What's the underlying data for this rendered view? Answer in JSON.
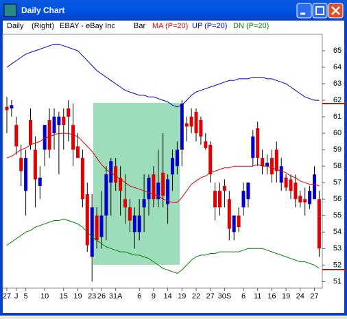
{
  "window_title": "Daily Chart",
  "chart_data": {
    "type": "candlestick",
    "period": "Daily",
    "axis_side": "(Right)",
    "symbol": "EBAY - eBay Inc",
    "categories": [
      "27",
      null,
      "J",
      null,
      "5",
      null,
      null,
      null,
      "10",
      null,
      null,
      null,
      "15",
      null,
      null,
      "19",
      null,
      null,
      "23",
      null,
      "26",
      null,
      null,
      "31A",
      null,
      null,
      null,
      null,
      "6",
      null,
      null,
      "9",
      null,
      null,
      "14",
      null,
      null,
      "19",
      null,
      null,
      "22",
      null,
      null,
      "27",
      null,
      null,
      "30S",
      null,
      null,
      null,
      "6",
      null,
      null,
      "11",
      null,
      null,
      "16",
      null,
      null,
      "19",
      null,
      null,
      "24",
      null,
      null,
      "27",
      null
    ],
    "candles": {
      "name": "Bar",
      "up_color": "#0000c8",
      "down_color": "#e00000",
      "wick_color": "#000000",
      "open": [
        61.6,
        61.5,
        60.5,
        58.5,
        56.5,
        60.8,
        59.0,
        56.8,
        59.0,
        60.8,
        60.0,
        60.5,
        61.0,
        61.5,
        60.5,
        59.2,
        58.5,
        56.3,
        52.5,
        55.0,
        53.7,
        55.0,
        57.0,
        58.0,
        57.3,
        56.0,
        55.5,
        54.0,
        54.0,
        55.5,
        56.0,
        57.5,
        56.0,
        57.6,
        55.7,
        57.5,
        58.0,
        59.0,
        60.6,
        61.0,
        61.3,
        60.8,
        59.5,
        59.3,
        56.5,
        56.5,
        56.8,
        56.0,
        54.0,
        55.0,
        55.5,
        56.0,
        58.5,
        60.3,
        58.5,
        58.0,
        58.5,
        59.0,
        57.0,
        57.3,
        57.2,
        57.0,
        56.2,
        56.0,
        55.7,
        56.0,
        56.0
      ],
      "high": [
        62.2,
        62.0,
        61.0,
        59.3,
        59.0,
        61.5,
        59.8,
        58.0,
        60.5,
        61.5,
        61.5,
        61.3,
        61.5,
        62.0,
        61.8,
        60.0,
        59.0,
        57.0,
        56.3,
        55.5,
        56.5,
        58.0,
        58.5,
        58.5,
        58.0,
        57.5,
        56.0,
        55.5,
        56.0,
        57.5,
        57.5,
        58.0,
        59.0,
        60.0,
        57.5,
        59.0,
        59.5,
        62.0,
        61.0,
        61.5,
        61.5,
        61.0,
        60.0,
        59.5,
        57.0,
        57.0,
        57.2,
        56.5,
        55.0,
        55.5,
        57.0,
        57.0,
        60.2,
        60.7,
        59.0,
        58.7,
        59.0,
        59.5,
        58.5,
        57.5,
        57.5,
        57.5,
        56.5,
        56.7,
        56.8,
        58.0,
        56.5
      ],
      "low": [
        60.0,
        61.0,
        58.7,
        56.8,
        55.0,
        59.0,
        55.5,
        56.0,
        58.0,
        58.5,
        59.0,
        57.5,
        59.0,
        59.5,
        58.0,
        58.5,
        55.5,
        52.8,
        51.0,
        53.0,
        53.0,
        53.5,
        55.0,
        56.5,
        55.0,
        54.5,
        54.0,
        53.0,
        53.5,
        54.0,
        55.0,
        55.5,
        55.5,
        55.5,
        54.5,
        56.5,
        57.5,
        58.0,
        59.5,
        60.0,
        59.5,
        59.3,
        59.0,
        57.0,
        54.7,
        55.0,
        55.5,
        53.5,
        53.5,
        54.0,
        55.0,
        55.5,
        58.0,
        58.0,
        57.5,
        57.5,
        57.0,
        57.0,
        56.5,
        56.5,
        56.0,
        55.5,
        55.5,
        55.0,
        55.4,
        56.0,
        52.5
      ],
      "close": [
        61.4,
        61.7,
        59.2,
        57.7,
        58.5,
        59.3,
        57.2,
        57.3,
        60.5,
        59.0,
        61.0,
        61.0,
        60.5,
        61.0,
        59.0,
        58.5,
        56.0,
        53.2,
        55.5,
        53.5,
        55.0,
        57.5,
        58.3,
        57.0,
        56.5,
        55.5,
        54.7,
        55.0,
        55.0,
        56.0,
        57.3,
        56.0,
        57.0,
        56.2,
        57.2,
        58.5,
        59.0,
        61.8,
        60.4,
        60.4,
        60.0,
        59.8,
        59.1,
        57.5,
        55.5,
        55.5,
        56.5,
        54.2,
        55.0,
        54.3,
        56.5,
        57.0,
        59.8,
        58.5,
        58.0,
        58.2,
        57.5,
        57.7,
        58.0,
        56.7,
        56.5,
        56.0,
        55.8,
        55.8,
        56.5,
        57.5,
        53.0
      ]
    },
    "series": [
      {
        "name": "MA (P=20)",
        "color": "#e00000",
        "values": [
          58.5,
          58.6,
          58.8,
          59.0,
          59.1,
          59.3,
          59.4,
          59.5,
          59.7,
          59.8,
          59.9,
          60.0,
          60.0,
          60.0,
          59.9,
          59.8,
          59.5,
          59.2,
          58.9,
          58.5,
          58.1,
          57.8,
          57.6,
          57.4,
          57.2,
          57.0,
          56.8,
          56.7,
          56.6,
          56.5,
          56.4,
          56.3,
          56.2,
          56.0,
          55.9,
          55.8,
          55.8,
          56.1,
          56.5,
          56.9,
          57.1,
          57.3,
          57.4,
          57.6,
          57.7,
          57.8,
          57.9,
          57.9,
          58.0,
          58.0,
          58.0,
          58.0,
          58.0,
          58.1,
          58.0,
          58.0,
          57.9,
          57.8,
          57.7,
          57.6,
          57.4,
          57.3,
          57.1,
          57.0,
          56.9,
          56.9,
          56.8
        ]
      },
      {
        "name": "UP (P=20)",
        "color": "#0000c8",
        "values": [
          64.0,
          64.2,
          64.4,
          64.6,
          64.8,
          64.9,
          65.0,
          65.1,
          65.2,
          65.3,
          65.4,
          65.4,
          65.3,
          65.2,
          65.1,
          65.0,
          64.7,
          64.4,
          64.1,
          63.8,
          63.6,
          63.4,
          63.2,
          63.0,
          62.8,
          62.6,
          62.5,
          62.4,
          62.3,
          62.3,
          62.2,
          62.2,
          62.1,
          62.0,
          61.9,
          61.7,
          61.6,
          61.7,
          62.0,
          62.3,
          62.5,
          62.6,
          62.7,
          62.8,
          62.9,
          63.0,
          63.1,
          63.2,
          63.2,
          63.3,
          63.3,
          63.3,
          63.4,
          63.4,
          63.4,
          63.3,
          63.3,
          63.2,
          63.1,
          63.0,
          62.8,
          62.6,
          62.4,
          62.2,
          62.1,
          62.0,
          62.0
        ]
      },
      {
        "name": "DN (P=20)",
        "color": "#008000",
        "values": [
          53.2,
          53.4,
          53.6,
          53.8,
          54.0,
          54.1,
          54.3,
          54.4,
          54.5,
          54.6,
          54.7,
          54.7,
          54.8,
          54.7,
          54.6,
          54.5,
          54.3,
          54.0,
          53.7,
          53.5,
          53.3,
          53.1,
          53.0,
          52.9,
          52.8,
          52.8,
          52.7,
          52.6,
          52.6,
          52.5,
          52.4,
          52.2,
          52.0,
          51.8,
          51.7,
          51.6,
          51.5,
          51.7,
          52.0,
          52.3,
          52.5,
          52.6,
          52.6,
          52.7,
          52.7,
          52.8,
          52.8,
          52.8,
          52.8,
          52.8,
          52.9,
          53.0,
          53.0,
          53.0,
          53.0,
          52.9,
          52.8,
          52.7,
          52.6,
          52.5,
          52.4,
          52.3,
          52.2,
          52.2,
          52.1,
          52.0,
          51.8
        ]
      }
    ],
    "ylim": [
      50.6,
      66
    ],
    "yticks": [
      51,
      52,
      53,
      54,
      55,
      56,
      57,
      58,
      59,
      60,
      61,
      62,
      63,
      64,
      65
    ]
  }
}
